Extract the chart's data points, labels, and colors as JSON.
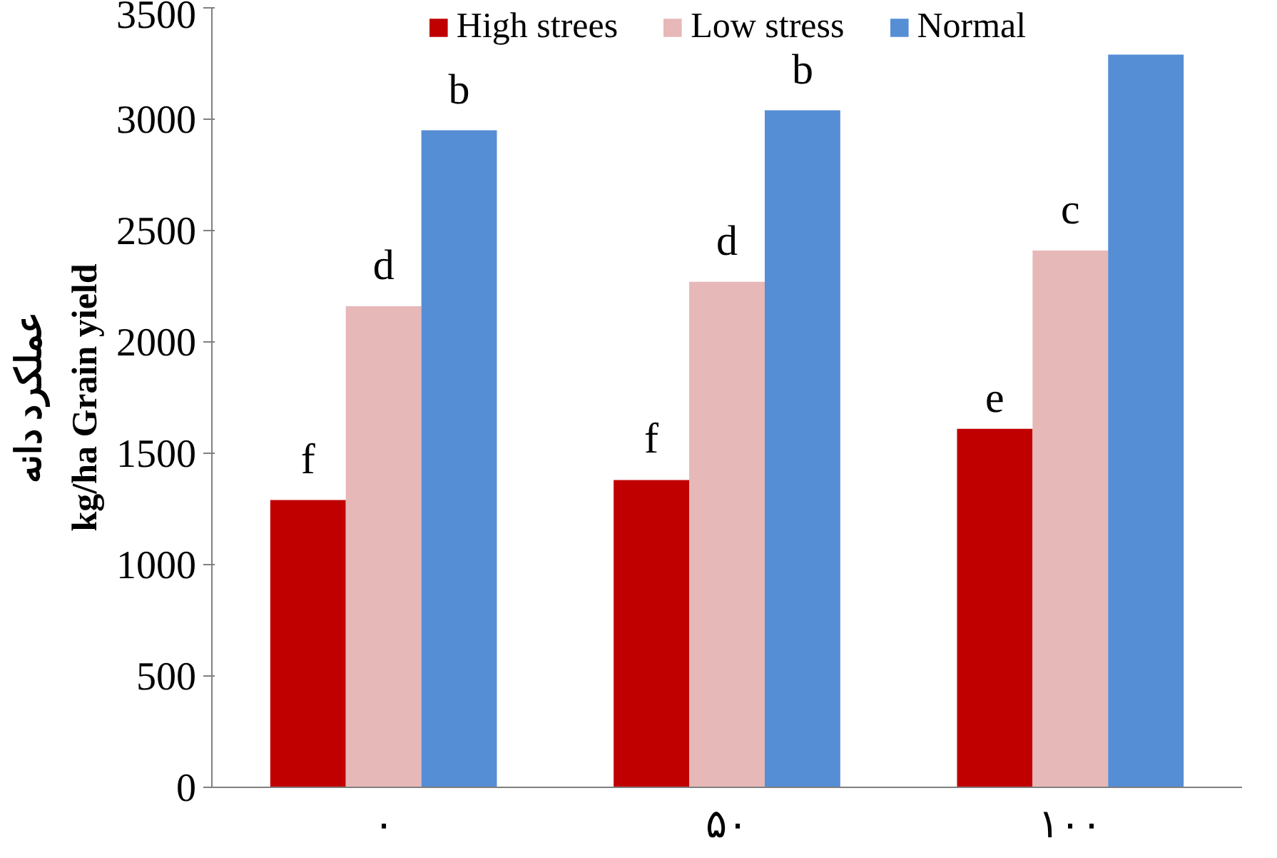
{
  "chart_data": {
    "type": "bar",
    "ylabel": "kg/ha Grain yield\nعملکرد دانه",
    "categories": [
      "۰",
      "۵۰",
      "۱۰۰"
    ],
    "series": [
      {
        "name": "High strees",
        "color": "#c00000",
        "values": [
          1290,
          1380,
          1610
        ],
        "value_labels": [
          "f",
          "f",
          "e"
        ]
      },
      {
        "name": "Low stress",
        "color": "#e6b8b7",
        "values": [
          2160,
          2270,
          2410
        ],
        "value_labels": [
          "d",
          "d",
          "c"
        ]
      },
      {
        "name": "Normal",
        "color": "#558ed5",
        "values": [
          2950,
          3040,
          3290
        ],
        "value_labels": [
          "b",
          "b",
          null
        ]
      }
    ],
    "ylim": [
      0,
      3500
    ],
    "yticks": [
      0,
      500,
      1000,
      1500,
      2000,
      2500,
      3000,
      3500
    ],
    "grid": false,
    "legend": "top"
  }
}
